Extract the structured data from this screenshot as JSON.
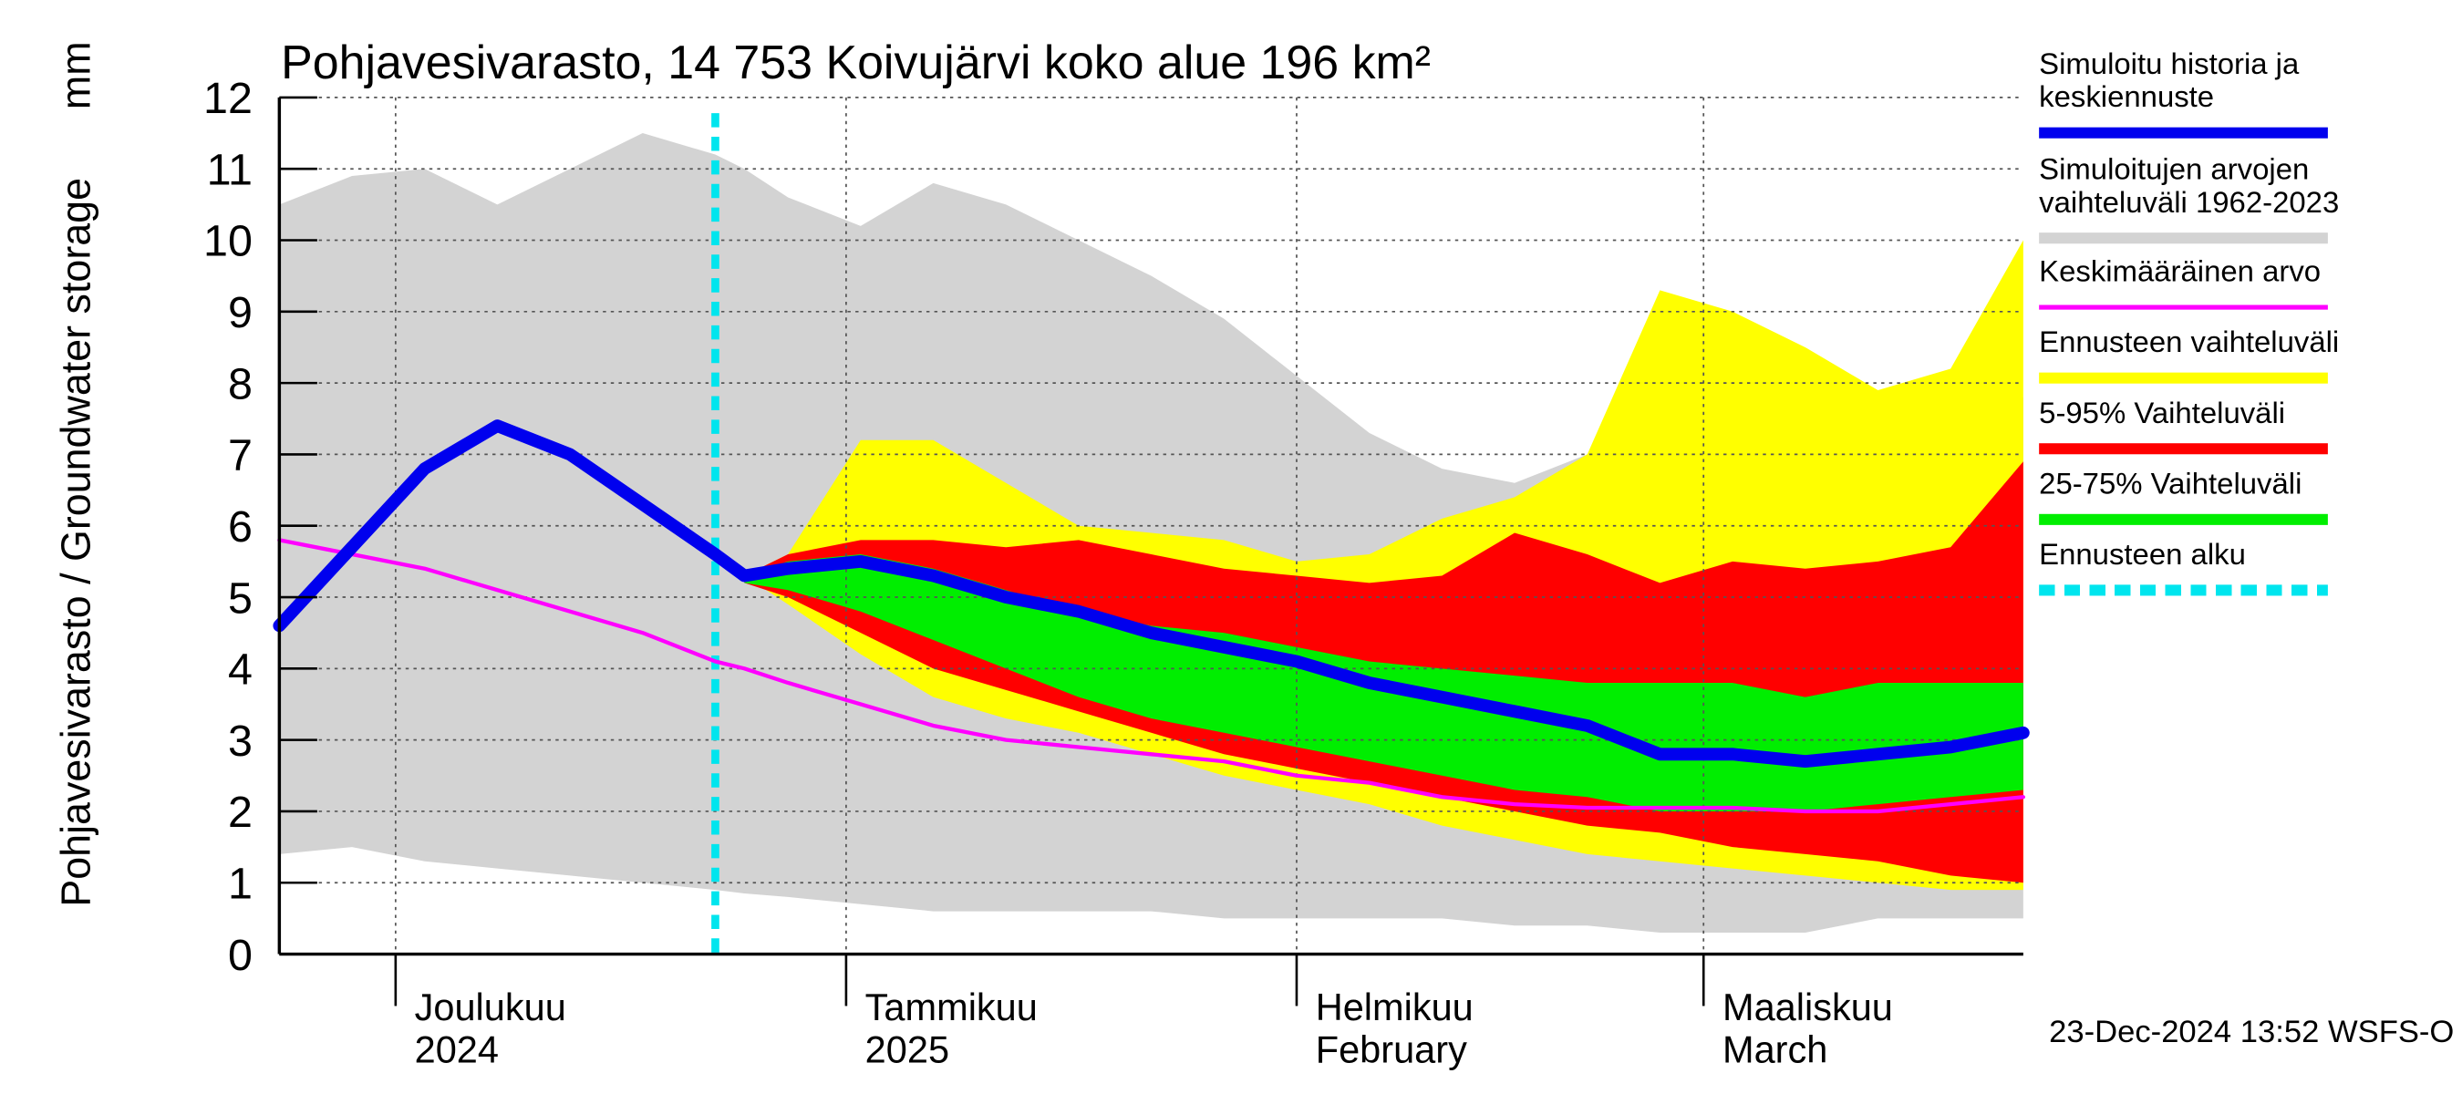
{
  "chart_data": {
    "type": "band",
    "title": "Pohjavesivarasto, 14 753 Koivujärvi koko alue 196 km²",
    "y_label": "Pohjavesivarasto / Groundwater storage",
    "y_unit": "mm",
    "footer": "23-Dec-2024 13:52 WSFS-O",
    "x": [
      0,
      5,
      10,
      15,
      20,
      25,
      30,
      32,
      35,
      40,
      45,
      50,
      55,
      60,
      65,
      70,
      75,
      80,
      85,
      90,
      95,
      100,
      105,
      110,
      115,
      120
    ],
    "xlim": [
      0,
      120
    ],
    "xticks": [
      {
        "value": 8,
        "label": [
          "Joulukuu",
          "2024"
        ]
      },
      {
        "value": 39,
        "label": [
          "Tammikuu",
          "2025"
        ]
      },
      {
        "value": 70,
        "label": [
          "Helmikuu",
          "February"
        ]
      },
      {
        "value": 98,
        "label": [
          "Maaliskuu",
          "March"
        ]
      }
    ],
    "ylim": [
      0,
      12
    ],
    "yticks": [
      0,
      1,
      2,
      3,
      4,
      5,
      6,
      7,
      8,
      9,
      10,
      11,
      12
    ],
    "grid": true,
    "series": [
      {
        "name": "Simuloitu historia ja keskiennuste",
        "color": "#0000ee",
        "values": [
          4.6,
          5.7,
          6.8,
          7.4,
          7.0,
          6.3,
          5.6,
          5.3,
          5.4,
          5.5,
          5.3,
          5.0,
          4.8,
          4.5,
          4.3,
          4.1,
          3.8,
          3.6,
          3.4,
          3.2,
          2.8,
          2.8,
          2.7,
          2.8,
          2.9,
          3.1
        ]
      },
      {
        "name": "Simuloitujen arvojen vaihteluväli 1962-2023",
        "color": "#d3d3d3",
        "lower": [
          1.4,
          1.5,
          1.3,
          1.2,
          1.1,
          1.0,
          0.9,
          0.85,
          0.8,
          0.7,
          0.6,
          0.6,
          0.6,
          0.6,
          0.5,
          0.5,
          0.5,
          0.5,
          0.4,
          0.4,
          0.3,
          0.3,
          0.3,
          0.5,
          0.5,
          0.5
        ],
        "upper": [
          10.5,
          10.9,
          11.0,
          10.5,
          11.0,
          11.5,
          11.2,
          11.0,
          10.6,
          10.2,
          10.8,
          10.5,
          10.0,
          9.5,
          8.9,
          8.1,
          7.3,
          6.8,
          6.6,
          7.0,
          7.6,
          7.5,
          7.2,
          7.4,
          7.4,
          7.8
        ]
      },
      {
        "name": "Keskimääräinen arvo",
        "color": "#ff00ff",
        "values": [
          5.8,
          5.6,
          5.4,
          5.1,
          4.8,
          4.5,
          4.1,
          4.0,
          3.8,
          3.5,
          3.2,
          3.0,
          2.9,
          2.8,
          2.7,
          2.5,
          2.4,
          2.2,
          2.1,
          2.05,
          2.05,
          2.05,
          2.0,
          2.0,
          2.1,
          2.2
        ]
      },
      {
        "name": "Ennusteen vaihteluväli",
        "color": "#ffff00",
        "lower": [
          null,
          null,
          null,
          null,
          null,
          null,
          null,
          5.3,
          4.9,
          4.2,
          3.6,
          3.3,
          3.1,
          2.8,
          2.5,
          2.3,
          2.1,
          1.8,
          1.6,
          1.4,
          1.3,
          1.2,
          1.1,
          1.0,
          0.9,
          0.9
        ],
        "upper": [
          null,
          null,
          null,
          null,
          null,
          null,
          null,
          5.3,
          5.6,
          7.2,
          7.2,
          6.6,
          6.0,
          5.9,
          5.8,
          5.5,
          5.6,
          6.1,
          6.4,
          7.0,
          9.3,
          9.0,
          8.5,
          7.9,
          8.2,
          10.0
        ]
      },
      {
        "name": "5-95% Vaihteluväli",
        "color": "#ff0000",
        "lower": [
          null,
          null,
          null,
          null,
          null,
          null,
          null,
          5.2,
          5.0,
          4.5,
          4.0,
          3.7,
          3.4,
          3.1,
          2.8,
          2.6,
          2.4,
          2.2,
          2.0,
          1.8,
          1.7,
          1.5,
          1.4,
          1.3,
          1.1,
          1.0
        ],
        "upper": [
          null,
          null,
          null,
          null,
          null,
          null,
          null,
          5.3,
          5.6,
          5.8,
          5.8,
          5.7,
          5.8,
          5.6,
          5.4,
          5.3,
          5.2,
          5.3,
          5.9,
          5.6,
          5.2,
          5.5,
          5.4,
          5.5,
          5.7,
          6.9
        ]
      },
      {
        "name": "25-75% Vaihteluväli",
        "color": "#00ee00",
        "lower": [
          null,
          null,
          null,
          null,
          null,
          null,
          null,
          5.2,
          5.1,
          4.8,
          4.4,
          4.0,
          3.6,
          3.3,
          3.1,
          2.9,
          2.7,
          2.5,
          2.3,
          2.2,
          2.0,
          2.0,
          2.0,
          2.1,
          2.2,
          2.3
        ],
        "upper": [
          null,
          null,
          null,
          null,
          null,
          null,
          null,
          5.3,
          5.5,
          5.6,
          5.4,
          5.1,
          4.8,
          4.6,
          4.5,
          4.3,
          4.1,
          4.0,
          3.9,
          3.8,
          3.8,
          3.8,
          3.6,
          3.8,
          3.8,
          3.8
        ]
      },
      {
        "name": "Ennusteen alku",
        "color": "#00e5ee",
        "x": 30
      }
    ]
  }
}
